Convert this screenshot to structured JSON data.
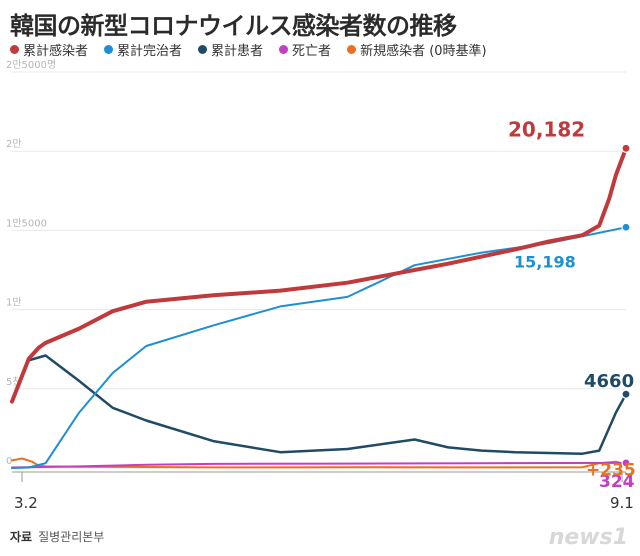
{
  "title": "韓国の新型コロナウイルス感染者数の推移",
  "legend": [
    {
      "label": "累計感染者",
      "color": "#c0393b"
    },
    {
      "label": "累計完治者",
      "color": "#1e8fd0"
    },
    {
      "label": "累計患者",
      "color": "#204a66"
    },
    {
      "label": "死亡者",
      "color": "#c33fbf"
    },
    {
      "label": "新規感染者 (0時基準)",
      "color": "#e9721e"
    }
  ],
  "source": {
    "label": "자료",
    "text": "질병관리본부"
  },
  "logo": "news1",
  "chart_data": {
    "type": "line",
    "x_start_label": "3.2",
    "x_end_label": "9.1",
    "y_tick_labels": [
      "0",
      "5천",
      "1만",
      "1만5000",
      "2만",
      "2만5000명"
    ],
    "y_ticks": [
      0,
      5000,
      10000,
      15000,
      20000,
      25000
    ],
    "ylim": [
      0,
      25000
    ],
    "end_labels": {
      "total": "20,182",
      "recovered": "15,198",
      "active": "4660",
      "deaths": "324",
      "new": "+235"
    },
    "series": [
      {
        "key": "total",
        "color": "#c0393b",
        "x": [
          0,
          5,
          8,
          10,
          20,
          30,
          40,
          60,
          80,
          100,
          120,
          130,
          150,
          160,
          170,
          175,
          178,
          180,
          183
        ],
        "values": [
          4200,
          6900,
          7600,
          7900,
          8800,
          9900,
          10500,
          10900,
          11200,
          11700,
          12500,
          12900,
          13800,
          14300,
          14700,
          15300,
          17000,
          18500,
          20182
        ]
      },
      {
        "key": "recovered",
        "color": "#1e8fd0",
        "x": [
          0,
          5,
          10,
          20,
          30,
          40,
          60,
          80,
          100,
          120,
          140,
          160,
          183
        ],
        "values": [
          0,
          30,
          300,
          3500,
          6000,
          7700,
          9000,
          10200,
          10800,
          12800,
          13600,
          14200,
          15198
        ]
      },
      {
        "key": "active",
        "color": "#204a66",
        "x": [
          0,
          5,
          10,
          20,
          30,
          40,
          60,
          80,
          100,
          120,
          130,
          140,
          150,
          170,
          175,
          180,
          183
        ],
        "values": [
          4200,
          6800,
          7100,
          5500,
          3800,
          3000,
          1700,
          1000,
          1200,
          1800,
          1300,
          1100,
          1000,
          900,
          1100,
          3500,
          4660
        ]
      },
      {
        "key": "deaths",
        "color": "#c33fbf",
        "x": [
          0,
          20,
          40,
          60,
          100,
          140,
          183
        ],
        "values": [
          30,
          100,
          200,
          260,
          280,
          300,
          324
        ]
      },
      {
        "key": "new",
        "color": "#e9721e",
        "x": [
          0,
          3,
          6,
          8,
          10,
          20,
          40,
          60,
          100,
          140,
          170,
          175,
          180,
          183
        ],
        "values": [
          480,
          600,
          400,
          150,
          100,
          80,
          60,
          40,
          50,
          40,
          50,
          300,
          400,
          235
        ]
      }
    ]
  }
}
